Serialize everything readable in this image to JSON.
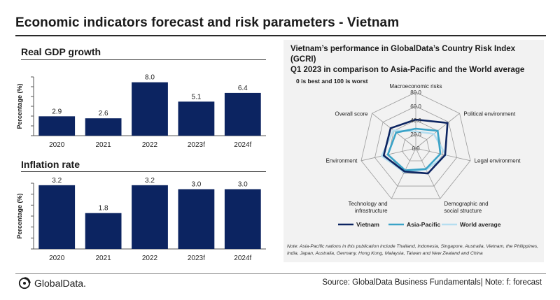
{
  "title": "Economic indicators forecast and risk parameters - Vietnam",
  "gdp_panel": {
    "title": "Real GDP growth"
  },
  "inflation_panel": {
    "title": "Inflation rate"
  },
  "radar_panel": {
    "title_line1": "Vietnam’s performance in GlobalData’s Country Risk Index (GCRI)",
    "title_line2": "Q1 2023 in comparison to Asia-Pacific and the World average",
    "subtitle": "0 is best and 100  is worst",
    "note": "Note: Asia-Pacific nations in this publication include Thailand, Indonesia, Singapore,  Australia, Vietnam, the Philippines, India, Japan, Australia, Germany, Hong Kong, Malaysia, Taiwan and New Zealand and China"
  },
  "footer": {
    "logo": "GlobalData.",
    "source": "Source: GlobalData Business Fundamentals| Note: f: forecast"
  },
  "colors": {
    "bar": "#0c2461",
    "vietnam": "#0c2461",
    "asia_pacific": "#3aa3c7",
    "world": "#b5def0"
  },
  "chart_data": [
    {
      "type": "bar",
      "title": "Real GDP growth",
      "categories": [
        "2020",
        "2021",
        "2022",
        "2023f",
        "2024f"
      ],
      "values": [
        2.9,
        2.6,
        8.0,
        5.1,
        6.4
      ],
      "value_labels": [
        "2.9",
        "2.6",
        "8.0",
        "5.1",
        "6.4"
      ],
      "xlabel": "",
      "ylabel": "Percentage (%)",
      "ylim": [
        0,
        8.8
      ]
    },
    {
      "type": "bar",
      "title": "Inflation rate",
      "categories": [
        "2020",
        "2021",
        "2022",
        "2023f",
        "2024f"
      ],
      "values": [
        3.2,
        1.8,
        3.2,
        3.0,
        3.0
      ],
      "value_labels": [
        "3.2",
        "1.8",
        "3.2",
        "3.0",
        "3.0"
      ],
      "xlabel": "",
      "ylabel": "Percentage (%)",
      "ylim": [
        0,
        3.3
      ]
    },
    {
      "type": "radar",
      "title": "Vietnam’s performance in GlobalData’s Country Risk Index (GCRI) Q1 2023 in comparison to Asia-Pacific and the World average",
      "axes": [
        [
          "Macroeconomic risks"
        ],
        [
          "Political environment"
        ],
        [
          "Legal environment"
        ],
        [
          "Demographic and",
          "social structure"
        ],
        [
          "Technology and",
          "infrastructure"
        ],
        [
          "Environment"
        ],
        [
          "Overall score"
        ]
      ],
      "rlim": [
        0,
        80
      ],
      "ticks": [
        0,
        20,
        40,
        60,
        80
      ],
      "tick_labels": [
        "0.0",
        "20.0",
        "40.0",
        "60.0",
        "80.0"
      ],
      "series": [
        {
          "name": "Vietnam",
          "color": "#0c2461",
          "values": [
            41,
            58,
            43,
            40,
            37,
            47,
            46
          ]
        },
        {
          "name": "Asia-Pacific",
          "color": "#3aa3c7",
          "values": [
            28,
            40,
            36,
            33,
            35,
            41,
            36
          ]
        },
        {
          "name": "World average",
          "color": "#b5def0",
          "values": [
            24,
            33,
            44,
            34,
            38,
            50,
            41
          ]
        }
      ]
    }
  ]
}
